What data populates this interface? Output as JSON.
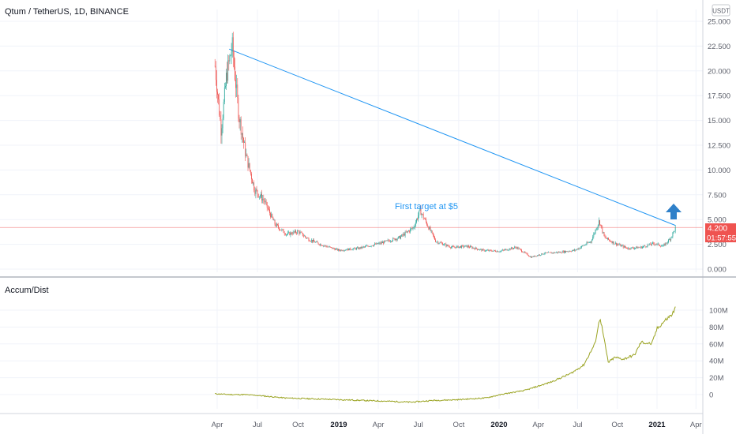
{
  "header": {
    "symbol_title": "Qtum / TetherUS, 1D, BINANCE",
    "currency_badge": "USDT"
  },
  "indicator": {
    "name": "Accum/Dist"
  },
  "annotation": {
    "text": "First target at $5",
    "arrow_icon": "arrow-up-icon"
  },
  "price_axis": {
    "ticks": [
      "0.000",
      "2.500",
      "5.000",
      "7.500",
      "10.000",
      "12.500",
      "15.000",
      "17.500",
      "20.000",
      "22.500",
      "25.000"
    ],
    "last_price": "4.200",
    "countdown": "01:57:55"
  },
  "volume_axis": {
    "ticks": [
      "0",
      "20M",
      "40M",
      "60M",
      "80M",
      "100M"
    ]
  },
  "time_axis": {
    "ticks": [
      "Apr",
      "Jul",
      "Oct",
      "2019",
      "Apr",
      "Jul",
      "Oct",
      "2020",
      "Apr",
      "Jul",
      "Oct",
      "2021",
      "Apr"
    ]
  },
  "colors": {
    "up": "#26a69a",
    "down": "#ef5350",
    "trendline": "#2196f3",
    "arrow": "#2f80c9",
    "adline": "#9aa321",
    "price_line": "#ef5350",
    "annotation": "#2196f3"
  },
  "chart_data": [
    {
      "type": "candlestick",
      "title": "Qtum / TetherUS, 1D, BINANCE",
      "ylim": [
        0,
        26
      ],
      "x_dates": [
        "2018-03-27",
        "2018-04-10",
        "2018-04-22",
        "2018-05-05",
        "2018-05-20",
        "2018-06-05",
        "2018-06-25",
        "2018-07-15",
        "2018-08-10",
        "2018-09-05",
        "2018-10-01",
        "2018-10-25",
        "2018-11-20",
        "2019-01-01",
        "2019-02-15",
        "2019-04-05",
        "2019-05-20",
        "2019-06-20",
        "2019-07-05",
        "2019-08-10",
        "2019-09-15",
        "2019-10-20",
        "2019-11-25",
        "2020-01-01",
        "2020-02-10",
        "2020-03-15",
        "2020-04-15",
        "2020-05-20",
        "2020-06-25",
        "2020-08-01",
        "2020-08-20",
        "2020-09-01",
        "2020-09-25",
        "2020-10-25",
        "2020-11-25",
        "2020-12-25",
        "2021-01-15",
        "2021-02-01",
        "2021-02-13"
      ],
      "close_values": [
        20.5,
        14.0,
        19.5,
        22.5,
        15.5,
        11.5,
        8.0,
        7.0,
        4.5,
        3.5,
        3.8,
        3.0,
        2.5,
        1.9,
        2.1,
        2.6,
        3.2,
        4.2,
        5.9,
        2.8,
        2.2,
        2.3,
        1.9,
        1.8,
        2.2,
        1.2,
        1.6,
        1.7,
        1.9,
        2.8,
        4.9,
        3.2,
        2.6,
        2.1,
        2.2,
        2.6,
        2.3,
        3.1,
        4.2
      ],
      "trendline": {
        "from": [
          "2018-04-28",
          22.2
        ],
        "to": [
          "2021-02-13",
          4.4
        ]
      },
      "last_price": 4.2
    },
    {
      "type": "line",
      "title": "Accum/Dist",
      "ylim": [
        -10,
        110
      ],
      "x_dates": [
        "2018-03-27",
        "2018-05-01",
        "2018-06-01",
        "2018-07-01",
        "2018-09-01",
        "2018-11-01",
        "2019-01-01",
        "2019-03-01",
        "2019-05-01",
        "2019-06-15",
        "2019-08-01",
        "2019-10-01",
        "2019-12-01",
        "2020-01-15",
        "2020-03-01",
        "2020-05-01",
        "2020-06-15",
        "2020-07-15",
        "2020-08-10",
        "2020-08-22",
        "2020-09-10",
        "2020-09-25",
        "2020-10-15",
        "2020-11-10",
        "2020-11-25",
        "2020-12-20",
        "2021-01-01",
        "2021-01-20",
        "2021-02-05",
        "2021-02-13"
      ],
      "values_millions": [
        1,
        0,
        0,
        -1,
        -4,
        -5,
        -6,
        -7,
        -8,
        -9,
        -7,
        -6,
        -4,
        1,
        5,
        15,
        25,
        35,
        60,
        92,
        38,
        44,
        42,
        47,
        62,
        60,
        78,
        88,
        95,
        103
      ]
    }
  ]
}
